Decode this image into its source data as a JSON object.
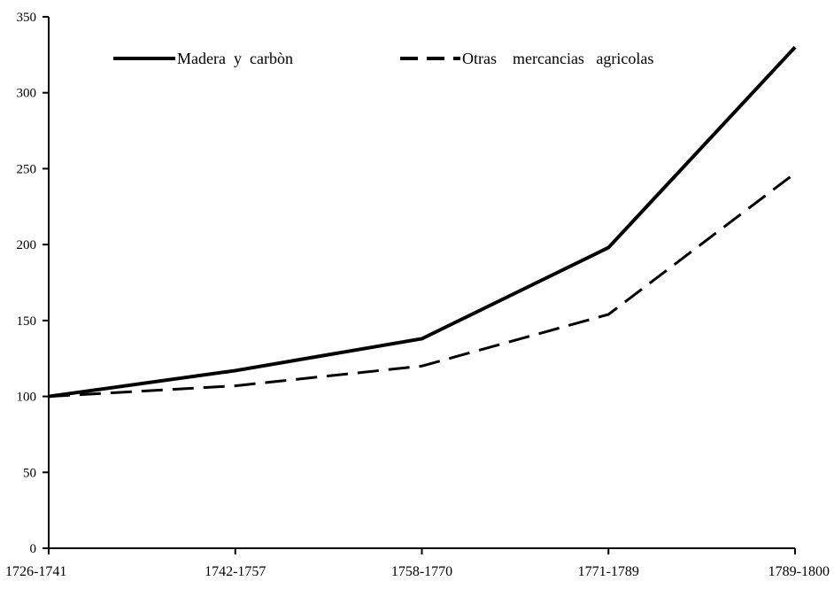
{
  "chart_data": {
    "type": "line",
    "title": "",
    "xlabel": "",
    "ylabel": "",
    "categories": [
      "1726-1741",
      "1742-1757",
      "1758-1770",
      "1771-1789",
      "1789-1800"
    ],
    "ylim": [
      0,
      350
    ],
    "yticks": [
      0,
      50,
      100,
      150,
      200,
      250,
      300,
      350
    ],
    "grid": false,
    "legend_position": "top",
    "series": [
      {
        "name": "Madera  y  carbòn",
        "values": [
          100,
          117,
          138,
          198,
          330
        ],
        "style": "solid",
        "color": "#000000"
      },
      {
        "name": "Otras    mercancias   agricolas",
        "values": [
          100,
          107,
          120,
          154,
          247
        ],
        "style": "dashed",
        "color": "#000000"
      }
    ]
  }
}
